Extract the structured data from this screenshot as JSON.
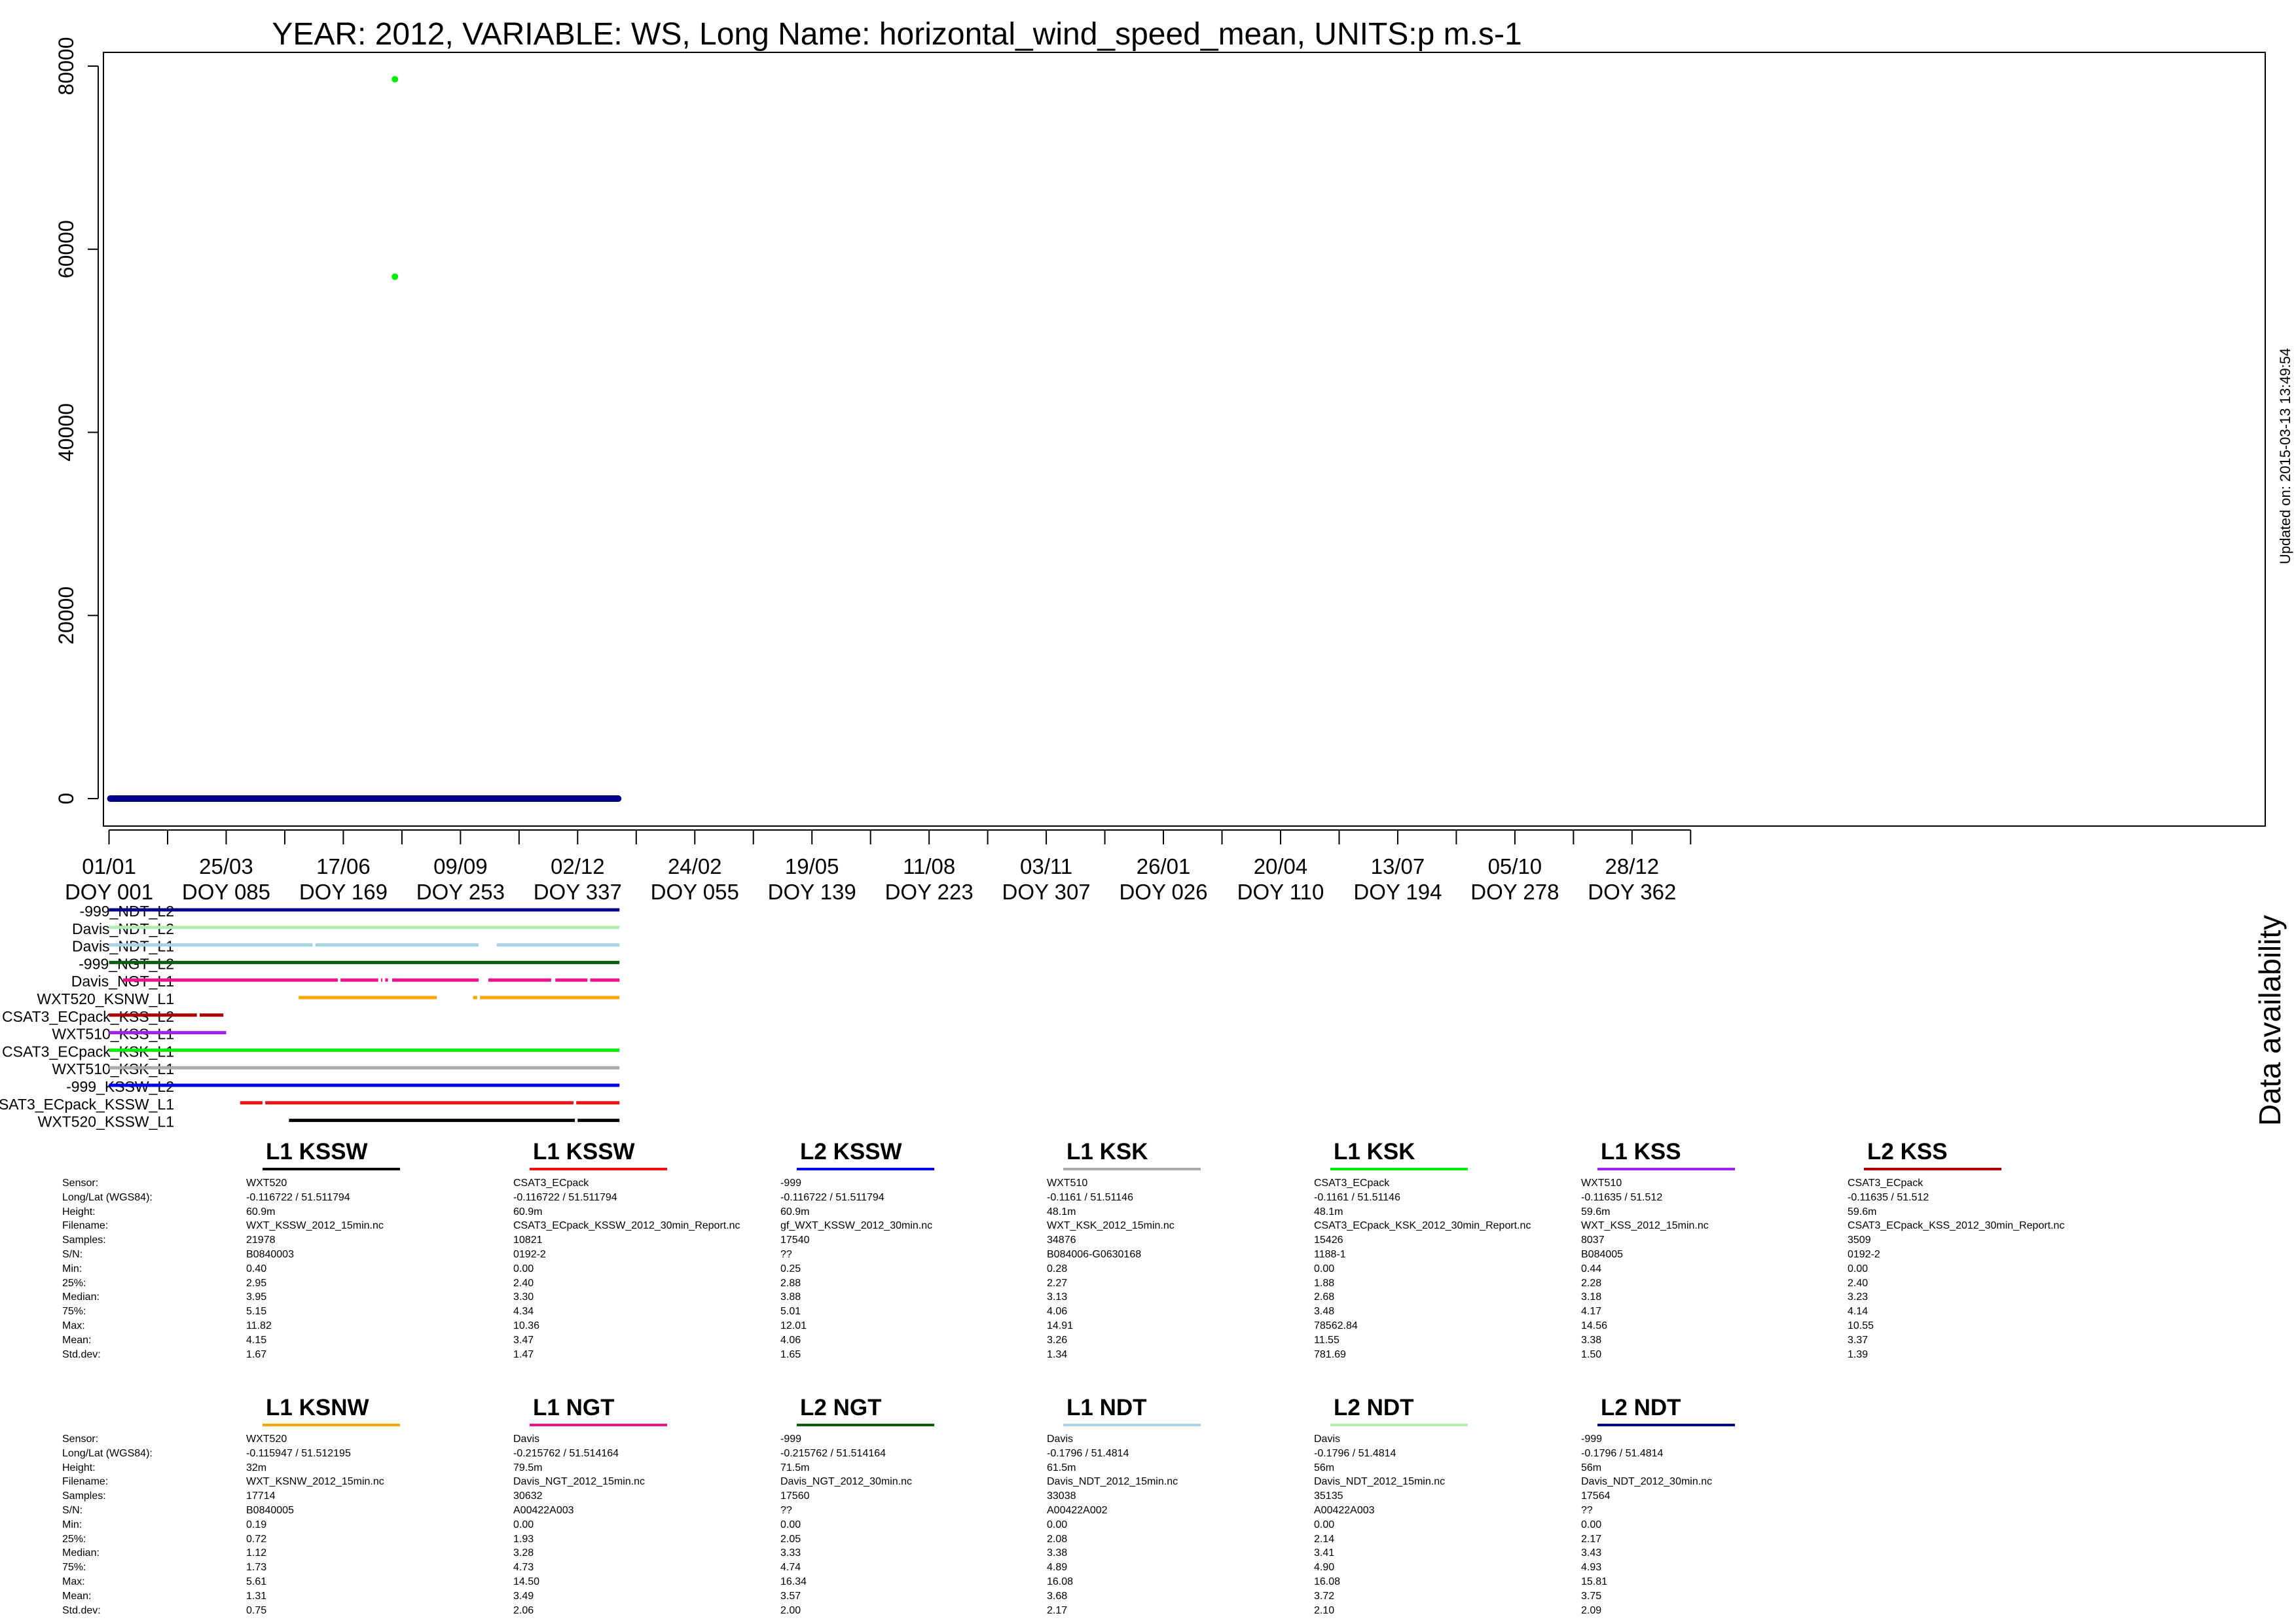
{
  "chart_data": {
    "type": "scatter",
    "title": "YEAR: 2012, VARIABLE: WS, Long Name: horizontal_wind_speed_mean, UNITS:p m.s-1",
    "updated": "Updated on: 2015-03-13 13:49:54",
    "xlabel": "",
    "ylabel": "",
    "ylim": [
      -3000,
      81500
    ],
    "yticks": [
      0,
      20000,
      40000,
      60000,
      80000
    ],
    "xlim": [
      -4,
      1546
    ],
    "x_unit": "days since 2012-01-01 (DOY)",
    "minor_tick_step": 42,
    "x_major_ticks": [
      {
        "x": 0,
        "date": "01/01",
        "doy": "DOY 001"
      },
      {
        "x": 84,
        "date": "25/03",
        "doy": "DOY 085"
      },
      {
        "x": 168,
        "date": "17/06",
        "doy": "DOY 169"
      },
      {
        "x": 252,
        "date": "09/09",
        "doy": "DOY 253"
      },
      {
        "x": 336,
        "date": "02/12",
        "doy": "DOY 337"
      },
      {
        "x": 420,
        "date": "24/02",
        "doy": "DOY 055"
      },
      {
        "x": 504,
        "date": "19/05",
        "doy": "DOY 139"
      },
      {
        "x": 588,
        "date": "11/08",
        "doy": "DOY 223"
      },
      {
        "x": 672,
        "date": "03/11",
        "doy": "DOY 307"
      },
      {
        "x": 756,
        "date": "26/01",
        "doy": "DOY 026"
      },
      {
        "x": 840,
        "date": "20/04",
        "doy": "DOY 110"
      },
      {
        "x": 924,
        "date": "13/07",
        "doy": "DOY 194"
      },
      {
        "x": 1008,
        "date": "05/10",
        "doy": "DOY 278"
      },
      {
        "x": 1092,
        "date": "28/12",
        "doy": "DOY 362"
      }
    ],
    "series_band": {
      "name": "WS",
      "x_range": [
        0,
        366
      ],
      "y": 0,
      "color": "#00008b"
    },
    "outliers": [
      {
        "x": 205,
        "y": 78563,
        "color": "#00ee00"
      },
      {
        "x": 205,
        "y": 57000,
        "color": "#00ee00"
      }
    ],
    "availability_label": "Data availability",
    "availability": [
      {
        "name": "-999_NDT_L2",
        "color": "#00008b",
        "segments": [
          [
            0,
            366
          ]
        ]
      },
      {
        "name": "Davis_NDT_L2",
        "color": "#b4ebb4",
        "segments": [
          [
            0,
            366
          ]
        ]
      },
      {
        "name": "Davis_NDT_L1",
        "color": "#a6d3e6",
        "segments": [
          [
            0,
            146
          ],
          [
            148,
            265
          ],
          [
            278,
            366
          ]
        ]
      },
      {
        "name": "-999_NGT_L2",
        "color": "#0b5e0b",
        "segments": [
          [
            0,
            366
          ]
        ]
      },
      {
        "name": "Davis_NGT_L1",
        "color": "#ee1188",
        "segments": [
          [
            10,
            164
          ],
          [
            166,
            193
          ],
          [
            195,
            196
          ],
          [
            198,
            200
          ],
          [
            203,
            265
          ],
          [
            272,
            317
          ],
          [
            320,
            343
          ],
          [
            345,
            366
          ]
        ]
      },
      {
        "name": "WXT520_KSNW_L1",
        "color": "#ffa500",
        "segments": [
          [
            136,
            235
          ],
          [
            261,
            264
          ],
          [
            266,
            366
          ]
        ]
      },
      {
        "name": "CSAT3_ECpack_KSS_L2",
        "color": "#aa0000",
        "segments": [
          [
            0,
            63
          ],
          [
            65,
            82
          ]
        ]
      },
      {
        "name": "WXT510_KSS_L1",
        "color": "#a020f0",
        "segments": [
          [
            0,
            84
          ]
        ]
      },
      {
        "name": "CSAT3_ECpack_KSK_L1",
        "color": "#00ee00",
        "segments": [
          [
            0,
            366
          ]
        ]
      },
      {
        "name": "WXT510_KSK_L1",
        "color": "#aaaaaa",
        "segments": [
          [
            0,
            366
          ]
        ]
      },
      {
        "name": "-999_KSSW_L2",
        "color": "#0000ee",
        "segments": [
          [
            0,
            366
          ]
        ]
      },
      {
        "name": "CSAT3_ECpack_KSSW_L1",
        "color": "#ee1111",
        "segments": [
          [
            94,
            110
          ],
          [
            112,
            333
          ],
          [
            335,
            366
          ]
        ]
      },
      {
        "name": "WXT520_KSSW_L1",
        "color": "#000000",
        "segments": [
          [
            129,
            334
          ],
          [
            336,
            366
          ]
        ]
      }
    ]
  },
  "stats": {
    "row_labels": [
      "Sensor:",
      "Long/Lat (WGS84):",
      "Height:",
      "Filename:",
      "Samples:",
      "S/N:",
      "Min:",
      "25%:",
      "Median:",
      "75%:",
      "Max:",
      "Mean:",
      "Std.dev:"
    ],
    "blocks": [
      {
        "columns": [
          {
            "title": "L1 KSSW",
            "color": "#000000",
            "values": [
              "WXT520",
              "-0.116722 / 51.511794",
              "60.9m",
              "WXT_KSSW_2012_15min.nc",
              "21978",
              "B0840003",
              "0.40",
              "2.95",
              "3.95",
              "5.15",
              "11.82",
              "4.15",
              "1.67"
            ]
          },
          {
            "title": "L1 KSSW",
            "color": "#ee1111",
            "values": [
              "CSAT3_ECpack",
              "-0.116722 / 51.511794",
              "60.9m",
              "CSAT3_ECpack_KSSW_2012_30min_Report.nc",
              "10821",
              "0192-2",
              "0.00",
              "2.40",
              "3.30",
              "4.34",
              "10.36",
              "3.47",
              "1.47"
            ]
          },
          {
            "title": "L2 KSSW",
            "color": "#0000ee",
            "values": [
              "-999",
              "-0.116722 / 51.511794",
              "60.9m",
              "gf_WXT_KSSW_2012_30min.nc",
              "17540",
              "??",
              "0.25",
              "2.88",
              "3.88",
              "5.01",
              "12.01",
              "4.06",
              "1.65"
            ]
          },
          {
            "title": "L1 KSK",
            "color": "#aaaaaa",
            "values": [
              "WXT510",
              "-0.1161 / 51.51146",
              "48.1m",
              "WXT_KSK_2012_15min.nc",
              "34876",
              "B084006-G0630168",
              "0.28",
              "2.27",
              "3.13",
              "4.06",
              "14.91",
              "3.26",
              "1.34"
            ]
          },
          {
            "title": "L1 KSK",
            "color": "#00ee00",
            "values": [
              "CSAT3_ECpack",
              "-0.1161 / 51.51146",
              "48.1m",
              "CSAT3_ECpack_KSK_2012_30min_Report.nc",
              "15426",
              "1188-1",
              "0.00",
              "1.88",
              "2.68",
              "3.48",
              "78562.84",
              "11.55",
              "781.69"
            ]
          },
          {
            "title": "L1 KSS",
            "color": "#a020f0",
            "values": [
              "WXT510",
              "-0.11635 / 51.512",
              "59.6m",
              "WXT_KSS_2012_15min.nc",
              "8037",
              "B084005",
              "0.44",
              "2.28",
              "3.18",
              "4.17",
              "14.56",
              "3.38",
              "1.50"
            ]
          },
          {
            "title": "L2 KSS",
            "color": "#aa0000",
            "values": [
              "CSAT3_ECpack",
              "-0.11635 / 51.512",
              "59.6m",
              "CSAT3_ECpack_KSS_2012_30min_Report.nc",
              "3509",
              "0192-2",
              "0.00",
              "2.40",
              "3.23",
              "4.14",
              "10.55",
              "3.37",
              "1.39"
            ]
          }
        ]
      },
      {
        "columns": [
          {
            "title": "L1 KSNW",
            "color": "#ffa500",
            "values": [
              "WXT520",
              "-0.115947 / 51.512195",
              "32m",
              "WXT_KSNW_2012_15min.nc",
              "17714",
              "B0840005",
              "0.19",
              "0.72",
              "1.12",
              "1.73",
              "5.61",
              "1.31",
              "0.75"
            ]
          },
          {
            "title": "L1 NGT",
            "color": "#ee1188",
            "values": [
              "Davis",
              "-0.215762 / 51.514164",
              "79.5m",
              "Davis_NGT_2012_15min.nc",
              "30632",
              "A00422A003",
              "0.00",
              "1.93",
              "3.28",
              "4.73",
              "14.50",
              "3.49",
              "2.06"
            ]
          },
          {
            "title": "L2 NGT",
            "color": "#0b5e0b",
            "values": [
              "-999",
              "-0.215762 / 51.514164",
              "71.5m",
              "Davis_NGT_2012_30min.nc",
              "17560",
              "??",
              "0.00",
              "2.05",
              "3.33",
              "4.74",
              "16.34",
              "3.57",
              "2.00"
            ]
          },
          {
            "title": "L1 NDT",
            "color": "#a6d3e6",
            "values": [
              "Davis",
              "-0.1796 / 51.4814",
              "61.5m",
              "Davis_NDT_2012_15min.nc",
              "33038",
              "A00422A002",
              "0.00",
              "2.08",
              "3.38",
              "4.89",
              "16.08",
              "3.68",
              "2.17"
            ]
          },
          {
            "title": "L2 NDT",
            "color": "#b4ebb4",
            "values": [
              "Davis",
              "-0.1796 / 51.4814",
              "56m",
              "Davis_NDT_2012_15min.nc",
              "35135",
              "A00422A003",
              "0.00",
              "2.14",
              "3.41",
              "4.90",
              "16.08",
              "3.72",
              "2.10"
            ]
          },
          {
            "title": "L2 NDT",
            "color": "#00008b",
            "values": [
              "-999",
              "-0.1796 / 51.4814",
              "56m",
              "Davis_NDT_2012_30min.nc",
              "17564",
              "??",
              "0.00",
              "2.17",
              "3.43",
              "4.93",
              "15.81",
              "3.75",
              "2.09"
            ]
          }
        ]
      }
    ]
  }
}
